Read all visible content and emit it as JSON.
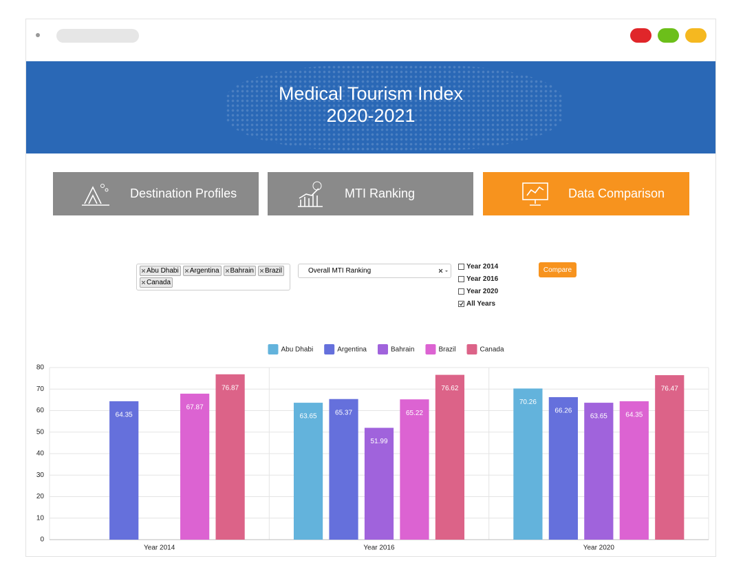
{
  "header": {
    "title_lines": [
      "Medical Tourism Index",
      "2020-2021"
    ]
  },
  "nav": [
    {
      "label": "Destination Profiles"
    },
    {
      "label": "MTI Ranking"
    },
    {
      "label": "Data Comparison",
      "active": true
    }
  ],
  "filters": {
    "countries": [
      "Abu Dhabi",
      "Argentina",
      "Bahrain",
      "Brazil",
      "Canada"
    ],
    "metric": "Overall MTI Ranking",
    "years": [
      {
        "label": "Year 2014",
        "checked": false
      },
      {
        "label": "Year 2016",
        "checked": false
      },
      {
        "label": "Year 2020",
        "checked": false
      },
      {
        "label": "All Years",
        "checked": true
      }
    ],
    "button": "Compare"
  },
  "chart_data": {
    "type": "bar",
    "legend": "top",
    "grid": true,
    "categories": [
      "Year 2014",
      "Year 2016",
      "Year 2020"
    ],
    "series": [
      {
        "name": "Abu Dhabi",
        "color": "#63b3dc",
        "values": [
          null,
          63.65,
          70.26
        ]
      },
      {
        "name": "Argentina",
        "color": "#6570dc",
        "values": [
          64.35,
          65.37,
          66.26
        ]
      },
      {
        "name": "Bahrain",
        "color": "#a063dc",
        "values": [
          null,
          51.99,
          63.65
        ]
      },
      {
        "name": "Brazil",
        "color": "#dc63d2",
        "values": [
          67.87,
          65.22,
          64.35
        ]
      },
      {
        "name": "Canada",
        "color": "#dc6388",
        "values": [
          76.87,
          76.62,
          76.47
        ]
      }
    ],
    "ylim": [
      0,
      80
    ],
    "yticks": [
      0,
      10,
      20,
      30,
      40,
      50,
      60,
      70,
      80
    ]
  }
}
